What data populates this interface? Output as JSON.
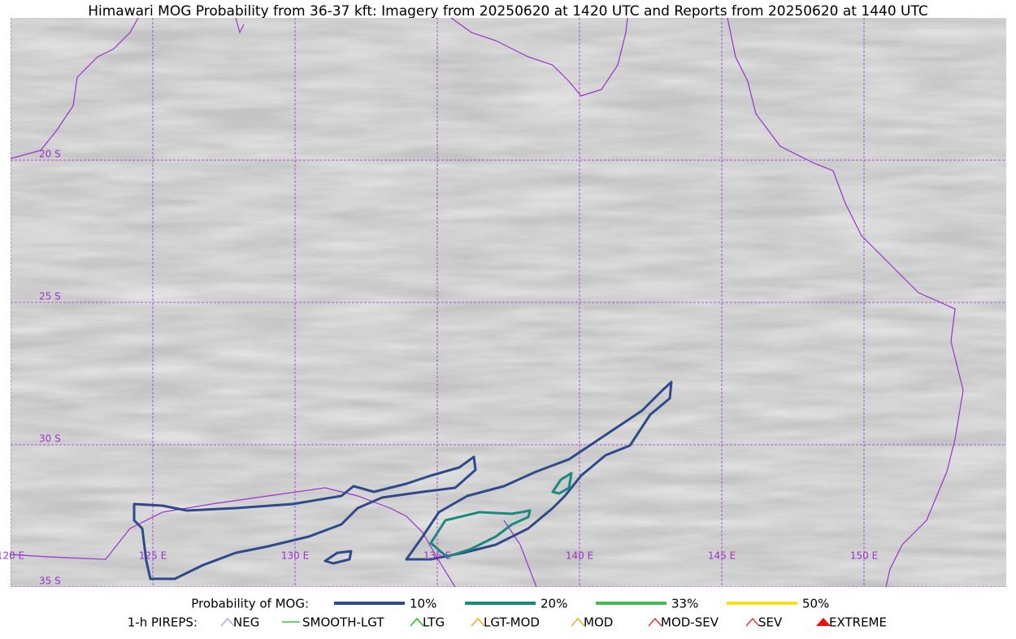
{
  "title": "Himawari MOG Probability from 36-37 kft: Imagery from 20250620 at 1420 UTC and Reports from 20250620 at 1440 UTC",
  "map": {
    "lat_labels": [
      "20 S",
      "25 S",
      "30 S",
      "35 S"
    ],
    "lon_labels": [
      "120 E",
      "125 E",
      "130 E",
      "135 E",
      "140 E",
      "145 E",
      "150 E"
    ],
    "grid_color": "#9933cc"
  },
  "legend": {
    "probability": {
      "label": "Probability of MOG:",
      "items": [
        {
          "name": "10%",
          "color": "#2e4a8a"
        },
        {
          "name": "20%",
          "color": "#1a8a80"
        },
        {
          "name": "33%",
          "color": "#44bb55"
        },
        {
          "name": "50%",
          "color": "#f5e01a"
        }
      ]
    },
    "pireps": {
      "label": "1-h PIREPS:",
      "items": [
        {
          "name": "NEG",
          "color": "#aaaaee"
        },
        {
          "name": "SMOOTH-LGT",
          "color": "#33cc33"
        },
        {
          "name": "LTG",
          "color": "#22bb22"
        },
        {
          "name": "LGT-MOD",
          "color": "#eeaa22"
        },
        {
          "name": "MOD",
          "color": "#eeaa22"
        },
        {
          "name": "MOD-SEV",
          "color": "#ee3333"
        },
        {
          "name": "SEV",
          "color": "#ee3333"
        },
        {
          "name": "EXTREME",
          "color": "#ee1111"
        }
      ]
    }
  }
}
